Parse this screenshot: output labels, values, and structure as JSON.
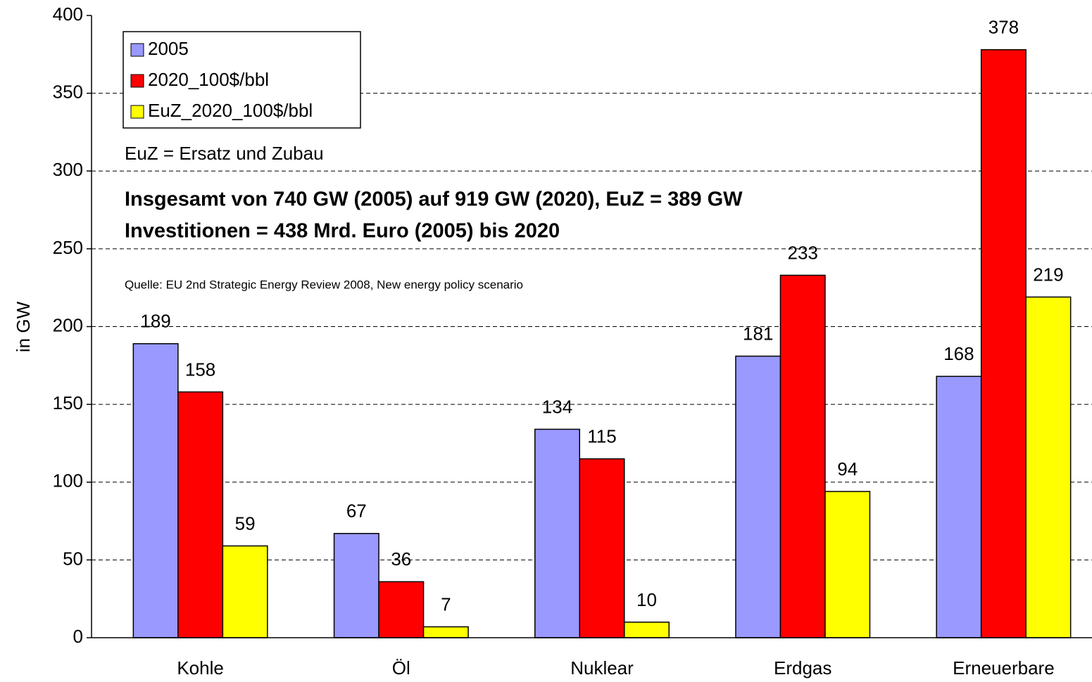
{
  "chart_data": {
    "type": "bar",
    "y_label": "in GW",
    "annotations": [
      "EuZ = Ersatz und Zubau",
      "Insgesamt von 740 GW (2005) auf 919 GW (2020), EuZ = 389 GW",
      "Investitionen = 438 Mrd. Euro (2005) bis 2020",
      "Quelle: EU 2nd Strategic Energy Review 2008, New energy policy scenario"
    ],
    "categories": [
      "Kohle",
      "Öl",
      "Nuklear",
      "Erdgas",
      "Erneuerbare"
    ],
    "series": [
      {
        "name": "2005",
        "color": "#9999ff",
        "values": [
          189,
          67,
          134,
          181,
          168
        ]
      },
      {
        "name": "2020_100$/bbl",
        "color": "#ff0000",
        "values": [
          158,
          36,
          115,
          233,
          378
        ]
      },
      {
        "name": "EuZ_2020_100$/bbl",
        "color": "#ffff00",
        "values": [
          59,
          7,
          10,
          94,
          219
        ]
      }
    ],
    "ylim": [
      0,
      400
    ],
    "yticks": [
      0,
      50,
      100,
      150,
      200,
      250,
      300,
      350,
      400
    ],
    "grid": true,
    "legend": "upper left"
  }
}
